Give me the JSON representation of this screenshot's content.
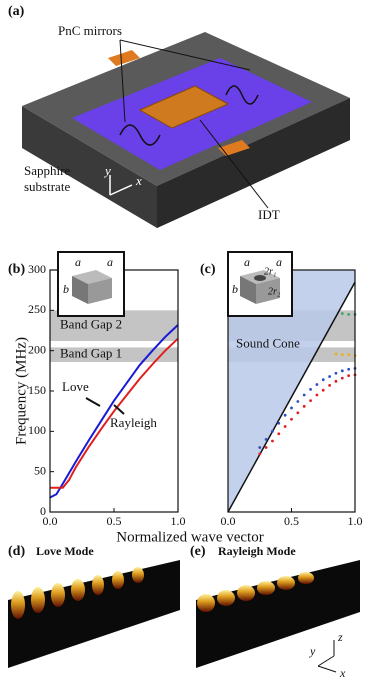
{
  "panels": {
    "labels": [
      "(a)",
      "(b)",
      "(c)",
      "(d)",
      "(e)"
    ]
  },
  "device": {
    "mirrors": "PnC mirrors",
    "substrate": [
      "Sapphire",
      "substrate"
    ],
    "idt": "IDT",
    "axis_y": "y",
    "axis_x": "x"
  },
  "inset_b": {
    "a1": "a",
    "a2": "a",
    "b": "b"
  },
  "inset_c": {
    "a1": "a",
    "a2": "a",
    "b": "b",
    "r1": "2r₁",
    "r2": "2r₂"
  },
  "modes": {
    "d": "Love Mode",
    "e": "Rayleigh Mode",
    "axis_y": "y",
    "axis_z": "z",
    "axis_x": "x"
  },
  "chart_data": [
    {
      "type": "line",
      "ylabel": "Frequency (MHz)",
      "xlabel": "Normalized wave vector",
      "xlim": [
        0,
        1
      ],
      "ylim": [
        0,
        300
      ],
      "xticks": [
        {
          "value": 0,
          "label": "0.0"
        },
        {
          "value": 0.5,
          "label": "0.5"
        },
        {
          "value": 1,
          "label": "1.0"
        }
      ],
      "yticks": [
        0,
        50,
        100,
        150,
        200,
        250,
        300
      ],
      "bands": [
        {
          "label": "Band Gap 2",
          "range": [
            212,
            250
          ]
        },
        {
          "label": "Band Gap 1",
          "range": [
            186,
            204
          ]
        }
      ],
      "series": [
        {
          "name": "Love",
          "color": "#1a1ad6",
          "style": "line",
          "x": [
            0,
            0.05,
            0.1,
            0.2,
            0.3,
            0.4,
            0.5,
            0.6,
            0.7,
            0.8,
            0.9,
            1.0
          ],
          "values": [
            18,
            22,
            35,
            62,
            88,
            113,
            138,
            160,
            182,
            200,
            217,
            232
          ]
        },
        {
          "name": "Rayleigh",
          "color": "#e01f1f",
          "style": "line",
          "x": [
            0,
            0.1,
            0.15,
            0.2,
            0.3,
            0.4,
            0.5,
            0.6,
            0.7,
            0.8,
            0.9,
            1.0
          ],
          "values": [
            30,
            30,
            40,
            55,
            80,
            103,
            125,
            145,
            165,
            183,
            200,
            215
          ]
        }
      ]
    },
    {
      "type": "line",
      "xlim": [
        0,
        1
      ],
      "ylim": [
        0,
        300
      ],
      "xticks": [
        {
          "value": 0,
          "label": "0.0"
        },
        {
          "value": 0.5,
          "label": "0.5"
        },
        {
          "value": 1,
          "label": "1.0"
        }
      ],
      "bands": [
        {
          "range": [
            212,
            250
          ]
        },
        {
          "range": [
            186,
            204
          ]
        }
      ],
      "annotation": "Sound Cone",
      "series": [
        {
          "color": "#b8c9ea",
          "style": "cone",
          "x": [
            0,
            1
          ],
          "values": [
            0,
            285
          ]
        },
        {
          "color": "#2d4fc4",
          "style": "dots",
          "x": [
            0.25,
            0.3,
            0.35,
            0.4,
            0.45,
            0.5,
            0.55,
            0.6,
            0.65,
            0.7,
            0.75,
            0.8,
            0.85,
            0.9,
            0.95,
            1.0
          ],
          "values": [
            80,
            90,
            100,
            110,
            120,
            129,
            137,
            145,
            152,
            158,
            164,
            168,
            172,
            175,
            177,
            178
          ]
        },
        {
          "color": "#e02020",
          "style": "dots",
          "x": [
            0.25,
            0.3,
            0.35,
            0.4,
            0.45,
            0.5,
            0.55,
            0.6,
            0.65,
            0.7,
            0.75,
            0.8,
            0.85,
            0.9,
            0.95,
            1.0
          ],
          "values": [
            72,
            80,
            88,
            97,
            106,
            115,
            123,
            131,
            138,
            145,
            151,
            157,
            162,
            166,
            169,
            170
          ]
        },
        {
          "color": "#e8b020",
          "style": "dots",
          "x": [
            0.85,
            0.9,
            0.95,
            1.0
          ],
          "values": [
            196,
            195,
            195,
            194
          ]
        },
        {
          "color": "#3aa860",
          "style": "dots",
          "x": [
            0.9,
            0.95,
            1.0
          ],
          "values": [
            246,
            245,
            245
          ]
        }
      ]
    }
  ]
}
